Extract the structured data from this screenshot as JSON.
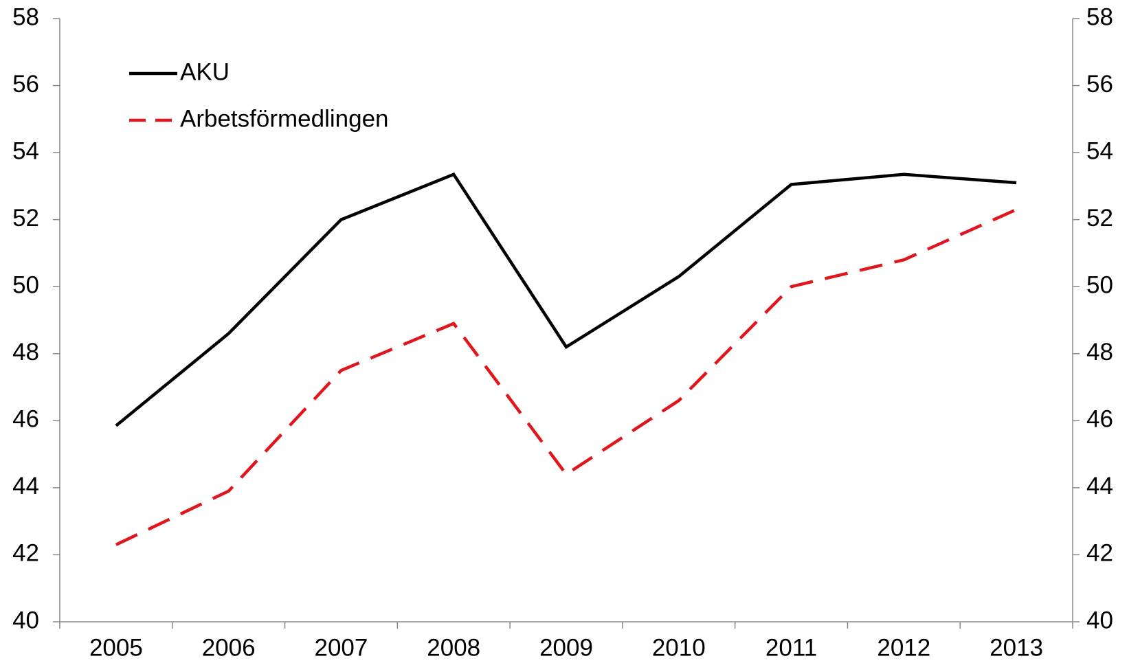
{
  "chart_data": {
    "type": "line",
    "categories": [
      "2005",
      "2006",
      "2007",
      "2008",
      "2009",
      "2010",
      "2011",
      "2012",
      "2013"
    ],
    "series": [
      {
        "name": "AKU",
        "color": "#000000",
        "dash": "solid",
        "values": [
          45.85,
          48.6,
          52.0,
          53.35,
          48.2,
          50.3,
          53.05,
          53.35,
          53.1
        ]
      },
      {
        "name": "Arbetsförmedlingen",
        "color": "#e0161c",
        "dash": "dashed",
        "values": [
          42.3,
          43.9,
          47.5,
          48.9,
          44.4,
          46.6,
          50.0,
          50.8,
          52.3
        ]
      }
    ],
    "ylim": [
      40,
      58
    ],
    "yticks": [
      40,
      42,
      44,
      46,
      48,
      50,
      52,
      54,
      56,
      58
    ],
    "y2lim": [
      40,
      58
    ],
    "y2ticks": [
      40,
      42,
      44,
      46,
      48,
      50,
      52,
      54,
      56,
      58
    ],
    "grid": false,
    "legend": "upper left"
  }
}
